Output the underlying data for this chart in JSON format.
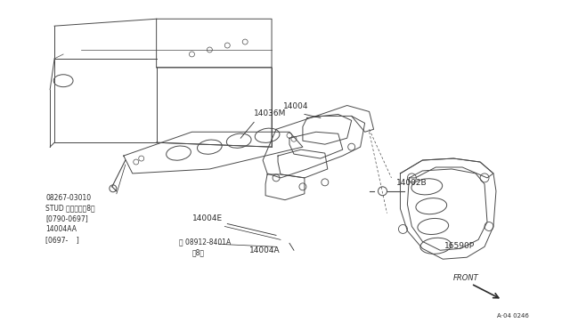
{
  "bg_color": "#ffffff",
  "line_color": "#4a4a4a",
  "text_color": "#2a2a2a",
  "fig_width": 6.4,
  "fig_height": 3.72,
  "dpi": 100,
  "stud_lines": [
    "08267-03010",
    "STUD スタッド（8）",
    "[0790-0697]",
    "14004AA",
    "[0697-    ]"
  ],
  "ref_label": "A·04 0246"
}
